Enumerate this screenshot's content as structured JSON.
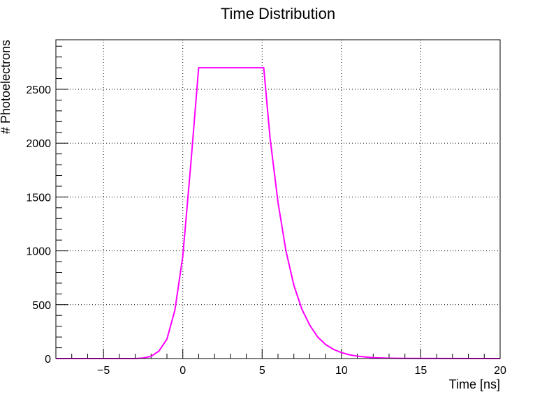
{
  "chart_data": {
    "type": "line",
    "title": "Time Distribution",
    "xlabel": "Time [ns]",
    "ylabel": "# Photoelectrons",
    "xlim": [
      -8,
      20
    ],
    "ylim": [
      0,
      2960
    ],
    "grid": true,
    "x_ticks": [
      -5,
      0,
      5,
      10,
      15,
      20
    ],
    "x_tick_labels": [
      "−5",
      "0",
      "5",
      "10",
      "15",
      "20"
    ],
    "y_ticks": [
      0,
      500,
      1000,
      1500,
      2000,
      2500
    ],
    "y_tick_labels": [
      "0",
      "500",
      "1000",
      "1500",
      "2000",
      "2500"
    ],
    "line_color": "#ff00ff",
    "series": [
      {
        "x": [
          -8,
          -3,
          -2.5,
          -2,
          -1.5,
          -1,
          -0.5,
          0,
          0.5,
          1,
          5.1,
          5.5,
          6,
          6.5,
          7,
          7.5,
          8,
          8.5,
          9,
          9.5,
          10,
          10.5,
          11,
          11.5,
          12,
          13,
          14,
          20
        ],
        "y": [
          0,
          0,
          5,
          20,
          70,
          180,
          450,
          950,
          1800,
          2700,
          2700,
          2050,
          1450,
          1000,
          680,
          460,
          310,
          200,
          130,
          85,
          55,
          35,
          22,
          14,
          8,
          3,
          1,
          0
        ]
      }
    ]
  }
}
